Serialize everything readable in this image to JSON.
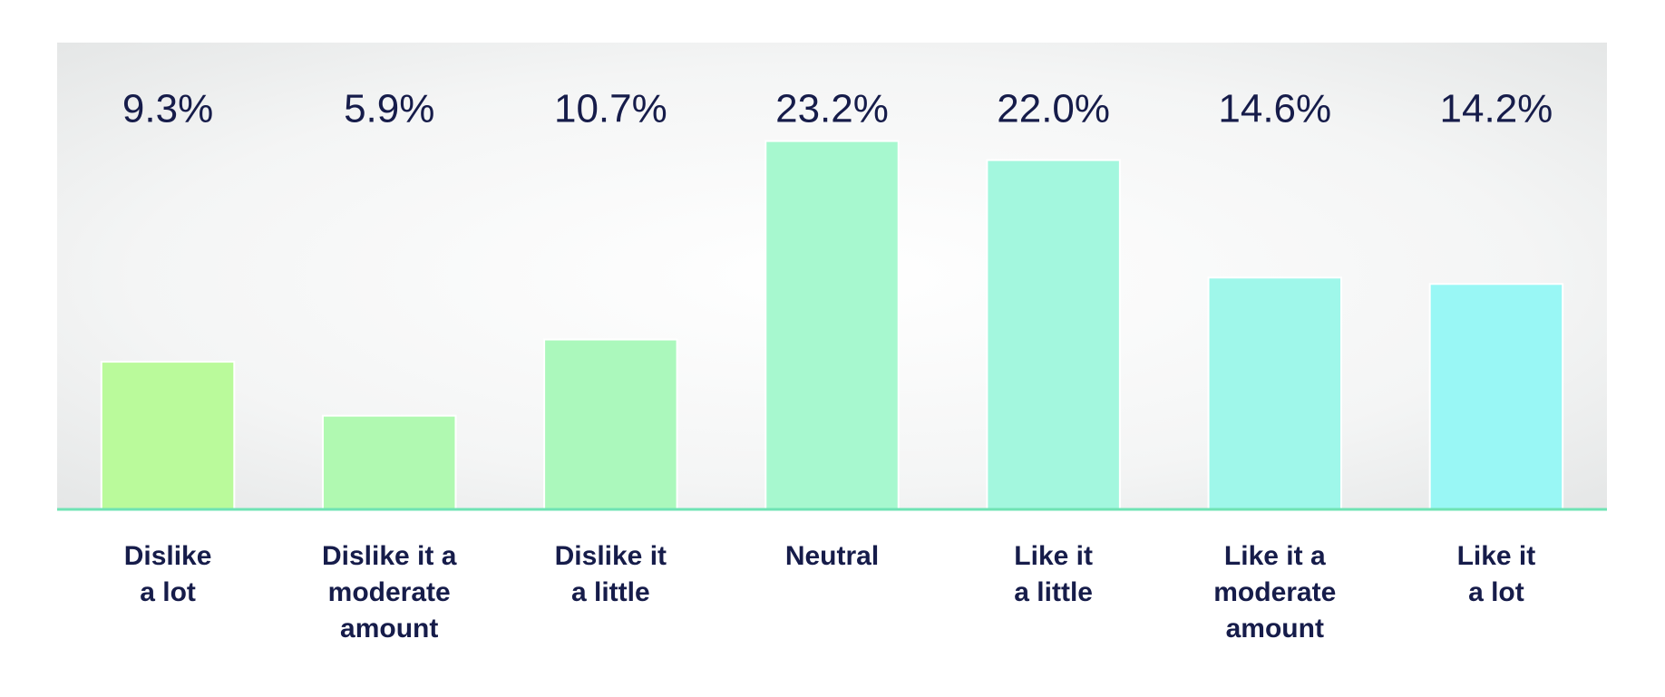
{
  "chart_data": {
    "type": "bar",
    "categories": [
      "Dislike\na lot",
      "Dislike it a\nmoderate\namount",
      "Dislike it\na little",
      "Neutral",
      "Like it\na little",
      "Like it a\nmoderate\namount",
      "Like it\na lot"
    ],
    "values": [
      9.3,
      5.9,
      10.7,
      23.2,
      22.0,
      14.6,
      14.2
    ],
    "value_labels": [
      "9.3%",
      "5.9%",
      "10.7%",
      "23.2%",
      "22.0%",
      "14.6%",
      "14.2%"
    ],
    "colors": [
      "#bafa9b",
      "#b0f9b1",
      "#abf8bc",
      "#a7f8cf",
      "#a3f7de",
      "#9ff7ea",
      "#99f7f5"
    ],
    "ylim": [
      0,
      29.4
    ]
  }
}
